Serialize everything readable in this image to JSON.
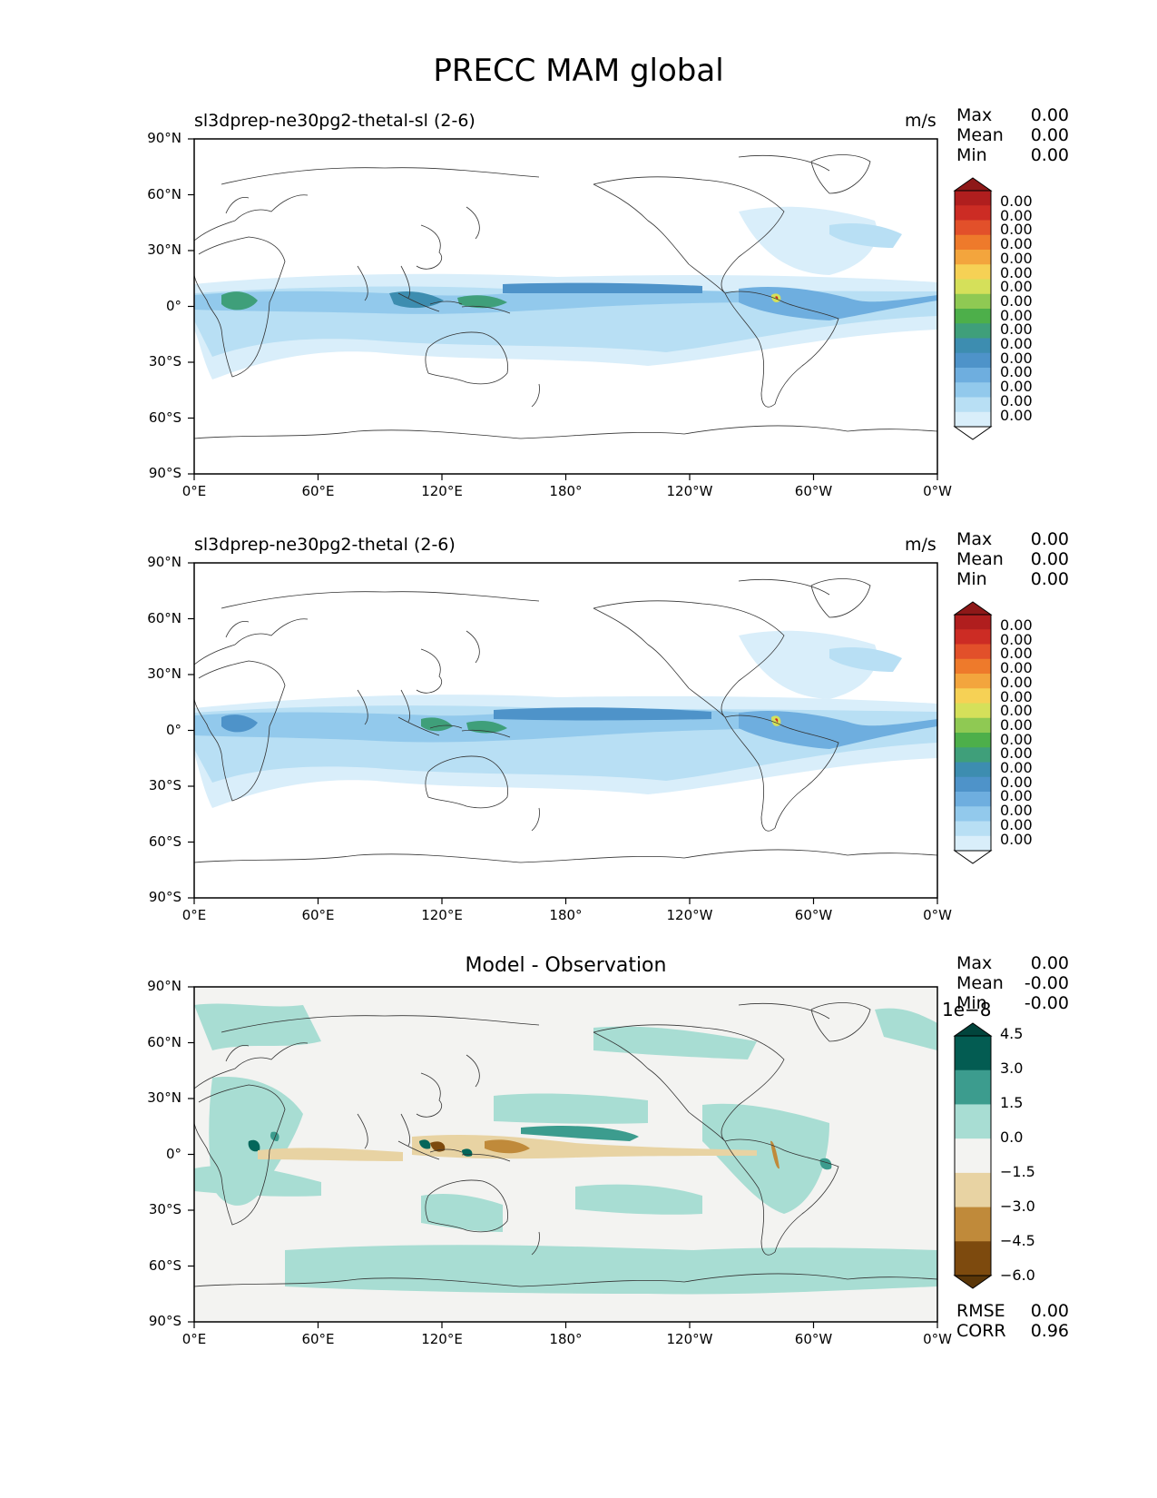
{
  "title": "PRECC MAM global",
  "panels": [
    {
      "title": "sl3dprep-ne30pg2-thetal-sl (2-6)",
      "units": "m/s",
      "stats": [
        {
          "label": "Max",
          "value": "0.00"
        },
        {
          "label": "Mean",
          "value": "0.00"
        },
        {
          "label": "Min",
          "value": "0.00"
        }
      ],
      "colorbar_labels": [
        "0.00",
        "0.00",
        "0.00",
        "0.00",
        "0.00",
        "0.00",
        "0.00",
        "0.00",
        "0.00",
        "0.00",
        "0.00",
        "0.00",
        "0.00",
        "0.00",
        "0.00",
        "0.00"
      ]
    },
    {
      "title": "sl3dprep-ne30pg2-thetal (2-6)",
      "units": "m/s",
      "stats": [
        {
          "label": "Max",
          "value": "0.00"
        },
        {
          "label": "Mean",
          "value": "0.00"
        },
        {
          "label": "Min",
          "value": "0.00"
        }
      ],
      "colorbar_labels": [
        "0.00",
        "0.00",
        "0.00",
        "0.00",
        "0.00",
        "0.00",
        "0.00",
        "0.00",
        "0.00",
        "0.00",
        "0.00",
        "0.00",
        "0.00",
        "0.00",
        "0.00",
        "0.00"
      ]
    },
    {
      "title": "Model - Observation",
      "units": "",
      "stats": [
        {
          "label": "Max",
          "value": "0.00"
        },
        {
          "label": "Mean",
          "value": "-0.00"
        },
        {
          "label": "Min",
          "value": "-0.00"
        }
      ],
      "colorbar_exponent": "1e−8",
      "colorbar_labels": [
        "4.5",
        "3.0",
        "1.5",
        "0.0",
        "−1.5",
        "−3.0",
        "−4.5",
        "−6.0"
      ],
      "footer_stats": [
        {
          "label": "RMSE",
          "value": "0.00"
        },
        {
          "label": "CORR",
          "value": "0.96"
        }
      ]
    }
  ],
  "axes": {
    "lat_ticks": [
      "90°N",
      "60°N",
      "30°N",
      "0°",
      "30°S",
      "60°S",
      "90°S"
    ],
    "lon_ticks": [
      "0°E",
      "60°E",
      "120°E",
      "180°",
      "120°W",
      "60°W",
      "0°W"
    ]
  },
  "colors": {
    "precip_scale": [
      "#ffffff",
      "#d9eefa",
      "#b8dff4",
      "#92c9ec",
      "#6eaedf",
      "#4e93c9",
      "#3d8db0",
      "#3f9f7a",
      "#4daf4a",
      "#8fc953",
      "#d5e05a",
      "#f6d155",
      "#f3a53d",
      "#ee7a2b",
      "#e2502a",
      "#cc2c24",
      "#b01e1e",
      "#8e1818"
    ],
    "diff_scale": [
      "#5a3608",
      "#7d4a0e",
      "#c08a3a",
      "#e8d3a3",
      "#f3f3f1",
      "#a8ddd3",
      "#3c9c8e",
      "#035c52",
      "#01443c"
    ],
    "map_background_diff": "#f3f3f1",
    "coastline": "#333333"
  },
  "chart_data": [
    {
      "type": "heatmap",
      "title": "sl3dprep-ne30pg2-thetal-sl (2-6)",
      "variable": "PRECC",
      "season": "MAM",
      "units": "m/s",
      "projection": "plate-carree",
      "xlim": [
        0,
        360
      ],
      "ylim": [
        -90,
        90
      ],
      "x_ticks": [
        "0°E",
        "60°E",
        "120°E",
        "180°",
        "120°W",
        "60°W",
        "0°W"
      ],
      "y_ticks": [
        "90°N",
        "60°N",
        "30°N",
        "0°",
        "30°S",
        "60°S",
        "90°S"
      ],
      "stats": {
        "max": "0.00",
        "mean": "0.00",
        "min": "0.00"
      },
      "colorbar": {
        "levels": 16,
        "labels": "0.00",
        "extend": "both"
      }
    },
    {
      "type": "heatmap",
      "title": "sl3dprep-ne30pg2-thetal (2-6)",
      "variable": "PRECC",
      "season": "MAM",
      "units": "m/s",
      "projection": "plate-carree",
      "xlim": [
        0,
        360
      ],
      "ylim": [
        -90,
        90
      ],
      "x_ticks": [
        "0°E",
        "60°E",
        "120°E",
        "180°",
        "120°W",
        "60°W",
        "0°W"
      ],
      "y_ticks": [
        "90°N",
        "60°N",
        "30°N",
        "0°",
        "30°S",
        "60°S",
        "90°S"
      ],
      "stats": {
        "max": "0.00",
        "mean": "0.00",
        "min": "0.00"
      },
      "colorbar": {
        "levels": 16,
        "labels": "0.00",
        "extend": "both"
      }
    },
    {
      "type": "heatmap",
      "title": "Model - Observation",
      "variable": "PRECC",
      "season": "MAM",
      "projection": "plate-carree",
      "xlim": [
        0,
        360
      ],
      "ylim": [
        -90,
        90
      ],
      "x_ticks": [
        "0°E",
        "60°E",
        "120°E",
        "180°",
        "120°W",
        "60°W",
        "0°W"
      ],
      "y_ticks": [
        "90°N",
        "60°N",
        "30°N",
        "0°",
        "30°S",
        "60°S",
        "90°S"
      ],
      "stats": {
        "max": "0.00",
        "mean": "-0.00",
        "min": "-0.00",
        "rmse": "0.00",
        "corr": "0.96"
      },
      "colorbar": {
        "scale": "1e-8",
        "ticks": [
          4.5,
          3.0,
          1.5,
          0.0,
          -1.5,
          -3.0,
          -4.5,
          -6.0
        ],
        "extend": "both"
      }
    }
  ]
}
